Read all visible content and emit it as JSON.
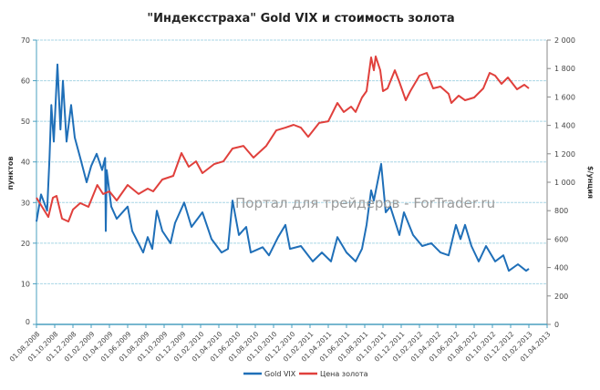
{
  "chart_data": {
    "type": "line",
    "title": "\"Индексстраха\" Gold VIX и стоимость золота",
    "ylabel": "пунктов",
    "y2label": "$/унция",
    "ylim": [
      0,
      70
    ],
    "y2lim": [
      0,
      2000
    ],
    "yticks": [
      "0",
      "10",
      "20",
      "30",
      "40",
      "50",
      "60",
      "70"
    ],
    "y2ticks": [
      "0",
      "200",
      "400",
      "600",
      "800",
      "1 000",
      "1 200",
      "1 400",
      "1 600",
      "1 800",
      "2 000"
    ],
    "xticks": [
      "01.08.2008",
      "01.10.2008",
      "01.12.2008",
      "01.02.2009",
      "01.04.2009",
      "01.06.2009",
      "01.08.2009",
      "01.10.2009",
      "01.12.2009",
      "01.02.2010",
      "01.04.2010",
      "01.06.2010",
      "01.08.2010",
      "01.10.2010",
      "01.12.2010",
      "01.02.2011",
      "01.04.2011",
      "01.06.2011",
      "01.08.2011",
      "01.10.2011",
      "01.12.2011",
      "01.02.2012",
      "01.04.2012",
      "01.06.2012",
      "01.08.2012",
      "01.10.2012",
      "01.12.2012",
      "01.02.2013",
      "01.04.2013"
    ],
    "xlim": [
      "2008-08-01",
      "2013-04-01"
    ],
    "grid": true,
    "legend_position": "bottom",
    "watermark": "Портал для трейдеров - ForTrader.ru",
    "series": [
      {
        "name": "Gold VIX",
        "axis": "left",
        "color": "#1f6fb8",
        "points": [
          [
            "2008-08-01",
            25.3
          ],
          [
            "2008-08-16",
            32
          ],
          [
            "2008-09-06",
            28
          ],
          [
            "2008-09-14",
            41
          ],
          [
            "2008-09-20",
            54
          ],
          [
            "2008-09-28",
            45
          ],
          [
            "2008-10-10",
            64
          ],
          [
            "2008-10-20",
            48
          ],
          [
            "2008-10-28",
            60
          ],
          [
            "2008-11-10",
            45
          ],
          [
            "2008-11-25",
            54
          ],
          [
            "2008-12-07",
            46
          ],
          [
            "2008-12-25",
            41
          ],
          [
            "2009-01-16",
            35
          ],
          [
            "2009-02-01",
            39
          ],
          [
            "2009-02-19",
            42
          ],
          [
            "2009-03-07",
            38
          ],
          [
            "2009-03-17",
            41
          ],
          [
            "2009-03-19",
            23
          ],
          [
            "2009-03-22",
            38
          ],
          [
            "2009-04-07",
            29
          ],
          [
            "2009-04-25",
            26
          ],
          [
            "2009-06-01",
            29
          ],
          [
            "2009-06-16",
            23
          ],
          [
            "2009-07-22",
            17.7
          ],
          [
            "2009-08-07",
            21.5
          ],
          [
            "2009-08-22",
            18.6
          ],
          [
            "2009-09-07",
            28
          ],
          [
            "2009-09-25",
            23
          ],
          [
            "2009-10-22",
            20
          ],
          [
            "2009-11-07",
            25
          ],
          [
            "2009-12-07",
            30
          ],
          [
            "2010-01-01",
            24
          ],
          [
            "2010-02-07",
            27.6
          ],
          [
            "2010-03-07",
            21
          ],
          [
            "2010-04-10",
            17.7
          ],
          [
            "2010-05-01",
            18.6
          ],
          [
            "2010-05-16",
            30.5
          ],
          [
            "2010-06-07",
            22
          ],
          [
            "2010-07-01",
            24
          ],
          [
            "2010-07-16",
            17.7
          ],
          [
            "2010-08-25",
            19
          ],
          [
            "2010-09-16",
            17
          ],
          [
            "2010-10-16",
            21.5
          ],
          [
            "2010-11-10",
            24.5
          ],
          [
            "2010-11-25",
            18.6
          ],
          [
            "2011-01-01",
            19.3
          ],
          [
            "2011-02-10",
            15.5
          ],
          [
            "2011-03-10",
            17.7
          ],
          [
            "2011-04-10",
            15.5
          ],
          [
            "2011-05-01",
            21.5
          ],
          [
            "2011-06-01",
            17.7
          ],
          [
            "2011-07-01",
            15.5
          ],
          [
            "2011-07-22",
            18.6
          ],
          [
            "2011-08-07",
            24.5
          ],
          [
            "2011-08-22",
            33
          ],
          [
            "2011-09-01",
            30.5
          ],
          [
            "2011-09-25",
            39.5
          ],
          [
            "2011-10-10",
            27.6
          ],
          [
            "2011-10-25",
            29
          ],
          [
            "2011-11-25",
            22
          ],
          [
            "2011-12-10",
            27.6
          ],
          [
            "2012-01-10",
            22
          ],
          [
            "2012-02-10",
            19.3
          ],
          [
            "2012-03-10",
            20
          ],
          [
            "2012-04-10",
            17.7
          ],
          [
            "2012-05-07",
            17
          ],
          [
            "2012-06-01",
            24.5
          ],
          [
            "2012-06-16",
            21
          ],
          [
            "2012-07-01",
            24.5
          ],
          [
            "2012-07-22",
            19.3
          ],
          [
            "2012-08-16",
            15.5
          ],
          [
            "2012-09-10",
            19.3
          ],
          [
            "2012-10-10",
            15.5
          ],
          [
            "2012-11-07",
            17
          ],
          [
            "2012-11-25",
            13.2
          ],
          [
            "2012-12-25",
            14.8
          ],
          [
            "2013-01-22",
            13.2
          ],
          [
            "2013-02-01",
            13.7
          ]
        ]
      },
      {
        "name": "Цена золота",
        "axis": "right",
        "color": "#e0403c",
        "points": [
          [
            "2008-08-01",
            891
          ],
          [
            "2008-08-25",
            808
          ],
          [
            "2008-09-10",
            756
          ],
          [
            "2008-09-25",
            891
          ],
          [
            "2008-10-07",
            904
          ],
          [
            "2008-10-25",
            744
          ],
          [
            "2008-11-16",
            724
          ],
          [
            "2008-12-01",
            808
          ],
          [
            "2008-12-25",
            853
          ],
          [
            "2009-01-22",
            827
          ],
          [
            "2009-02-21",
            981
          ],
          [
            "2009-03-10",
            917
          ],
          [
            "2009-04-01",
            936
          ],
          [
            "2009-04-25",
            872
          ],
          [
            "2009-06-01",
            981
          ],
          [
            "2009-07-07",
            917
          ],
          [
            "2009-08-07",
            955
          ],
          [
            "2009-08-25",
            936
          ],
          [
            "2009-09-25",
            1019
          ],
          [
            "2009-11-01",
            1045
          ],
          [
            "2009-11-28",
            1205
          ],
          [
            "2009-12-22",
            1109
          ],
          [
            "2010-01-16",
            1147
          ],
          [
            "2010-02-07",
            1064
          ],
          [
            "2010-03-16",
            1128
          ],
          [
            "2010-04-16",
            1147
          ],
          [
            "2010-05-16",
            1237
          ],
          [
            "2010-06-22",
            1256
          ],
          [
            "2010-07-25",
            1173
          ],
          [
            "2010-09-07",
            1256
          ],
          [
            "2010-10-10",
            1365
          ],
          [
            "2010-11-10",
            1384
          ],
          [
            "2010-12-07",
            1404
          ],
          [
            "2011-01-01",
            1384
          ],
          [
            "2011-01-25",
            1320
          ],
          [
            "2011-03-01",
            1417
          ],
          [
            "2011-04-01",
            1429
          ],
          [
            "2011-05-01",
            1558
          ],
          [
            "2011-05-22",
            1494
          ],
          [
            "2011-06-16",
            1532
          ],
          [
            "2011-07-01",
            1494
          ],
          [
            "2011-07-22",
            1596
          ],
          [
            "2011-08-07",
            1641
          ],
          [
            "2011-08-22",
            1878
          ],
          [
            "2011-09-01",
            1788
          ],
          [
            "2011-09-07",
            1885
          ],
          [
            "2011-09-22",
            1788
          ],
          [
            "2011-10-01",
            1641
          ],
          [
            "2011-10-16",
            1660
          ],
          [
            "2011-11-10",
            1788
          ],
          [
            "2011-11-25",
            1705
          ],
          [
            "2011-12-16",
            1577
          ],
          [
            "2012-01-01",
            1641
          ],
          [
            "2012-02-01",
            1750
          ],
          [
            "2012-02-25",
            1769
          ],
          [
            "2012-03-16",
            1660
          ],
          [
            "2012-04-10",
            1673
          ],
          [
            "2012-05-07",
            1622
          ],
          [
            "2012-05-16",
            1558
          ],
          [
            "2012-06-10",
            1609
          ],
          [
            "2012-07-01",
            1577
          ],
          [
            "2012-08-01",
            1596
          ],
          [
            "2012-09-01",
            1660
          ],
          [
            "2012-09-22",
            1769
          ],
          [
            "2012-10-10",
            1750
          ],
          [
            "2012-11-01",
            1692
          ],
          [
            "2012-11-22",
            1737
          ],
          [
            "2012-12-22",
            1654
          ],
          [
            "2013-01-16",
            1686
          ],
          [
            "2013-02-01",
            1660
          ]
        ]
      }
    ]
  }
}
